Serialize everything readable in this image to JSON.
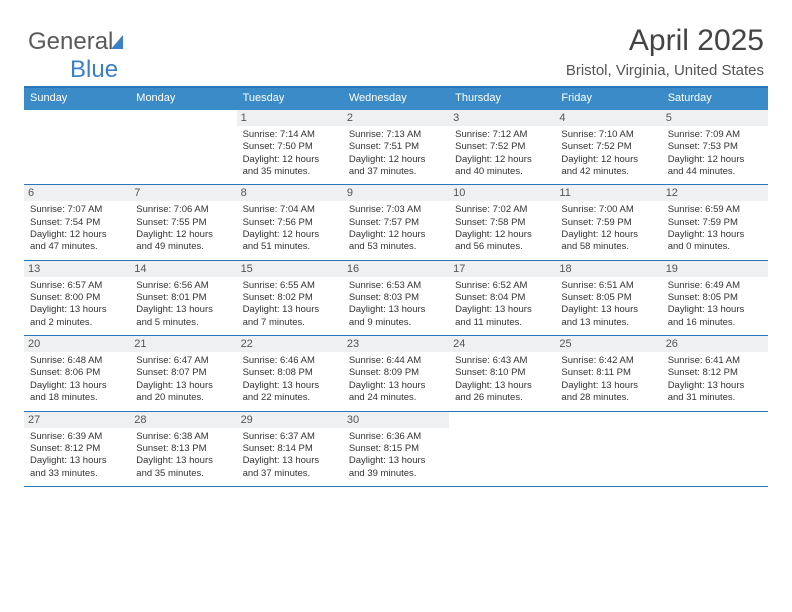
{
  "logo": {
    "part1": "General",
    "part2": "Blue"
  },
  "title": "April 2025",
  "subtitle": "Bristol, Virginia, United States",
  "colors": {
    "header_bg": "#3b8bc8",
    "header_text": "#ffffff",
    "border": "#2b77bb",
    "daynum_bg": "#eef0f1",
    "text": "#333333",
    "logo_gray": "#5a5a5a",
    "logo_blue": "#3b7fc4"
  },
  "day_headers": [
    "Sunday",
    "Monday",
    "Tuesday",
    "Wednesday",
    "Thursday",
    "Friday",
    "Saturday"
  ],
  "weeks": [
    [
      null,
      null,
      {
        "n": "1",
        "sr": "Sunrise: 7:14 AM",
        "ss": "Sunset: 7:50 PM",
        "dl": "Daylight: 12 hours and 35 minutes."
      },
      {
        "n": "2",
        "sr": "Sunrise: 7:13 AM",
        "ss": "Sunset: 7:51 PM",
        "dl": "Daylight: 12 hours and 37 minutes."
      },
      {
        "n": "3",
        "sr": "Sunrise: 7:12 AM",
        "ss": "Sunset: 7:52 PM",
        "dl": "Daylight: 12 hours and 40 minutes."
      },
      {
        "n": "4",
        "sr": "Sunrise: 7:10 AM",
        "ss": "Sunset: 7:52 PM",
        "dl": "Daylight: 12 hours and 42 minutes."
      },
      {
        "n": "5",
        "sr": "Sunrise: 7:09 AM",
        "ss": "Sunset: 7:53 PM",
        "dl": "Daylight: 12 hours and 44 minutes."
      }
    ],
    [
      {
        "n": "6",
        "sr": "Sunrise: 7:07 AM",
        "ss": "Sunset: 7:54 PM",
        "dl": "Daylight: 12 hours and 47 minutes."
      },
      {
        "n": "7",
        "sr": "Sunrise: 7:06 AM",
        "ss": "Sunset: 7:55 PM",
        "dl": "Daylight: 12 hours and 49 minutes."
      },
      {
        "n": "8",
        "sr": "Sunrise: 7:04 AM",
        "ss": "Sunset: 7:56 PM",
        "dl": "Daylight: 12 hours and 51 minutes."
      },
      {
        "n": "9",
        "sr": "Sunrise: 7:03 AM",
        "ss": "Sunset: 7:57 PM",
        "dl": "Daylight: 12 hours and 53 minutes."
      },
      {
        "n": "10",
        "sr": "Sunrise: 7:02 AM",
        "ss": "Sunset: 7:58 PM",
        "dl": "Daylight: 12 hours and 56 minutes."
      },
      {
        "n": "11",
        "sr": "Sunrise: 7:00 AM",
        "ss": "Sunset: 7:59 PM",
        "dl": "Daylight: 12 hours and 58 minutes."
      },
      {
        "n": "12",
        "sr": "Sunrise: 6:59 AM",
        "ss": "Sunset: 7:59 PM",
        "dl": "Daylight: 13 hours and 0 minutes."
      }
    ],
    [
      {
        "n": "13",
        "sr": "Sunrise: 6:57 AM",
        "ss": "Sunset: 8:00 PM",
        "dl": "Daylight: 13 hours and 2 minutes."
      },
      {
        "n": "14",
        "sr": "Sunrise: 6:56 AM",
        "ss": "Sunset: 8:01 PM",
        "dl": "Daylight: 13 hours and 5 minutes."
      },
      {
        "n": "15",
        "sr": "Sunrise: 6:55 AM",
        "ss": "Sunset: 8:02 PM",
        "dl": "Daylight: 13 hours and 7 minutes."
      },
      {
        "n": "16",
        "sr": "Sunrise: 6:53 AM",
        "ss": "Sunset: 8:03 PM",
        "dl": "Daylight: 13 hours and 9 minutes."
      },
      {
        "n": "17",
        "sr": "Sunrise: 6:52 AM",
        "ss": "Sunset: 8:04 PM",
        "dl": "Daylight: 13 hours and 11 minutes."
      },
      {
        "n": "18",
        "sr": "Sunrise: 6:51 AM",
        "ss": "Sunset: 8:05 PM",
        "dl": "Daylight: 13 hours and 13 minutes."
      },
      {
        "n": "19",
        "sr": "Sunrise: 6:49 AM",
        "ss": "Sunset: 8:05 PM",
        "dl": "Daylight: 13 hours and 16 minutes."
      }
    ],
    [
      {
        "n": "20",
        "sr": "Sunrise: 6:48 AM",
        "ss": "Sunset: 8:06 PM",
        "dl": "Daylight: 13 hours and 18 minutes."
      },
      {
        "n": "21",
        "sr": "Sunrise: 6:47 AM",
        "ss": "Sunset: 8:07 PM",
        "dl": "Daylight: 13 hours and 20 minutes."
      },
      {
        "n": "22",
        "sr": "Sunrise: 6:46 AM",
        "ss": "Sunset: 8:08 PM",
        "dl": "Daylight: 13 hours and 22 minutes."
      },
      {
        "n": "23",
        "sr": "Sunrise: 6:44 AM",
        "ss": "Sunset: 8:09 PM",
        "dl": "Daylight: 13 hours and 24 minutes."
      },
      {
        "n": "24",
        "sr": "Sunrise: 6:43 AM",
        "ss": "Sunset: 8:10 PM",
        "dl": "Daylight: 13 hours and 26 minutes."
      },
      {
        "n": "25",
        "sr": "Sunrise: 6:42 AM",
        "ss": "Sunset: 8:11 PM",
        "dl": "Daylight: 13 hours and 28 minutes."
      },
      {
        "n": "26",
        "sr": "Sunrise: 6:41 AM",
        "ss": "Sunset: 8:12 PM",
        "dl": "Daylight: 13 hours and 31 minutes."
      }
    ],
    [
      {
        "n": "27",
        "sr": "Sunrise: 6:39 AM",
        "ss": "Sunset: 8:12 PM",
        "dl": "Daylight: 13 hours and 33 minutes."
      },
      {
        "n": "28",
        "sr": "Sunrise: 6:38 AM",
        "ss": "Sunset: 8:13 PM",
        "dl": "Daylight: 13 hours and 35 minutes."
      },
      {
        "n": "29",
        "sr": "Sunrise: 6:37 AM",
        "ss": "Sunset: 8:14 PM",
        "dl": "Daylight: 13 hours and 37 minutes."
      },
      {
        "n": "30",
        "sr": "Sunrise: 6:36 AM",
        "ss": "Sunset: 8:15 PM",
        "dl": "Daylight: 13 hours and 39 minutes."
      },
      null,
      null,
      null
    ]
  ]
}
